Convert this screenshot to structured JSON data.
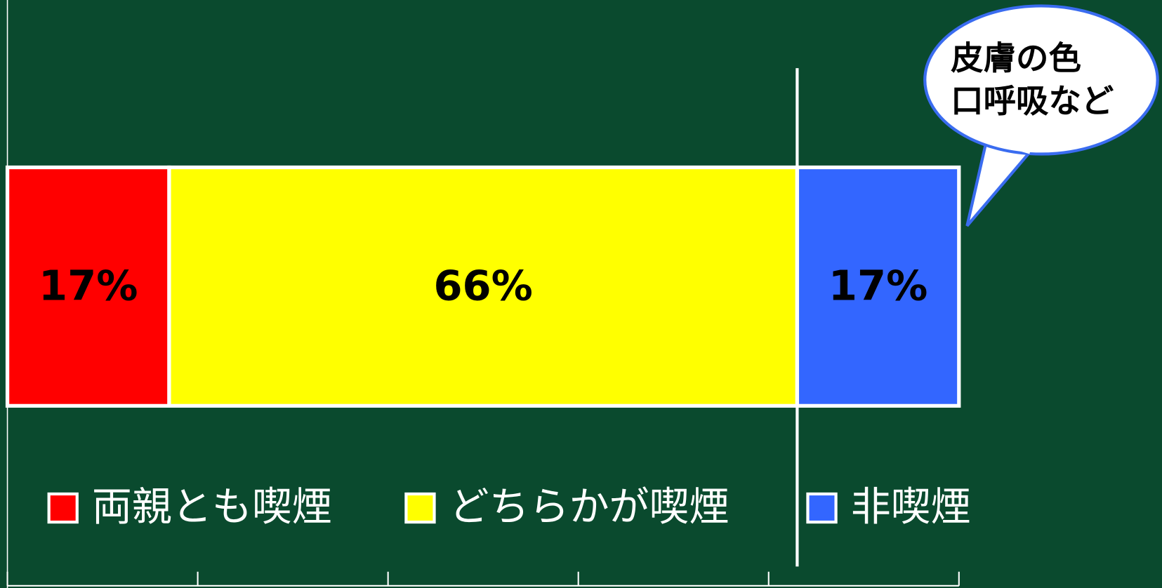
{
  "chart_data": {
    "type": "stacked-bar-horizontal",
    "series": [
      {
        "name": "両親とも喫煙",
        "color": "#ff0000",
        "values": [
          17
        ],
        "value_labels": [
          "17%"
        ]
      },
      {
        "name": "どちらかが喫煙",
        "color": "#ffff00",
        "values": [
          66
        ],
        "value_labels": [
          "66%"
        ]
      },
      {
        "name": "非喫煙",
        "color": "#3366ff",
        "values": [
          17
        ],
        "value_labels": [
          "17%"
        ]
      }
    ],
    "xlim": [
      0,
      100
    ],
    "xticks": [
      0,
      20,
      40,
      60,
      80,
      100
    ],
    "annotation": [
      "皮膚の色",
      "口呼吸など"
    ],
    "legend": "bottom"
  }
}
